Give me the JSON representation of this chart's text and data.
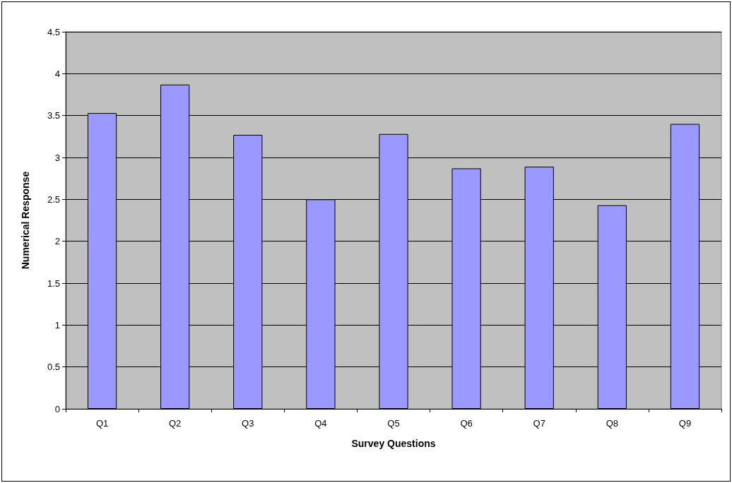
{
  "chart_data": {
    "type": "bar",
    "xlabel": "Survey Questions",
    "ylabel": "Numerical Response",
    "categories": [
      "Q1",
      "Q2",
      "Q3",
      "Q4",
      "Q5",
      "Q6",
      "Q7",
      "Q8",
      "Q9"
    ],
    "values": [
      3.53,
      3.87,
      3.27,
      2.5,
      3.28,
      2.87,
      2.89,
      2.43,
      3.4
    ],
    "color": "#9999ff",
    "ylim": [
      0,
      4.5
    ],
    "yticks": [
      0,
      0.5,
      1,
      1.5,
      2,
      2.5,
      3,
      3.5,
      4,
      4.5
    ],
    "grid": "y"
  }
}
